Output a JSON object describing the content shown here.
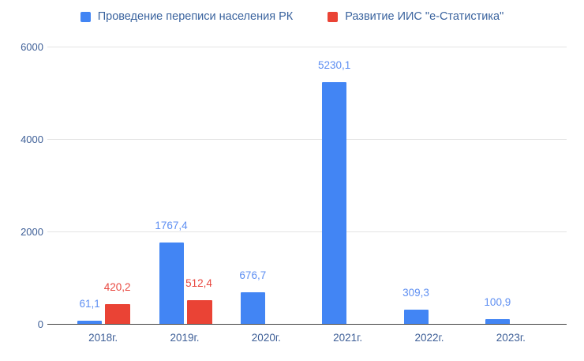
{
  "legend": {
    "items": [
      {
        "label": "Проведение переписи населения РК",
        "color": "#4285f4",
        "swatch_icon": "square-swatch-icon"
      },
      {
        "label": "Развитие ИИС \"е-Статистика\"",
        "color": "#ea4335",
        "swatch_icon": "square-swatch-icon"
      }
    ]
  },
  "chart_data": {
    "type": "bar",
    "title": "",
    "xlabel": "",
    "ylabel": "",
    "categories": [
      "2018г.",
      "2019г.",
      "2020г.",
      "2021г.",
      "2022г.",
      "2023г."
    ],
    "series": [
      {
        "name": "Проведение переписи населения РК",
        "color": "#4285f4",
        "label_color": "#5e8ff2",
        "values": [
          61.1,
          1767.4,
          676.7,
          5230.1,
          309.3,
          100.9
        ],
        "labels": [
          "61,1",
          "1767,4",
          "676,7",
          "5230,1",
          "309,3",
          "100,9"
        ]
      },
      {
        "name": "Развитие ИИС \"е-Статистика\"",
        "color": "#ea4335",
        "label_color": "#e8473f",
        "values": [
          420.2,
          512.4,
          null,
          null,
          null,
          null
        ],
        "labels": [
          "420,2",
          "512,4",
          "",
          "",
          "",
          ""
        ]
      }
    ],
    "y_ticks": [
      0,
      2000,
      4000,
      6000
    ],
    "y_tick_labels": [
      "0",
      "2000",
      "4000",
      "6000"
    ],
    "ylim": [
      0,
      6000
    ],
    "grid": true,
    "legend_position": "top",
    "background_color": "#ffffff",
    "gridline_color": "#e4e4e4",
    "axis_line_color": "#424242",
    "axis_text_color": "#3e5f97"
  }
}
